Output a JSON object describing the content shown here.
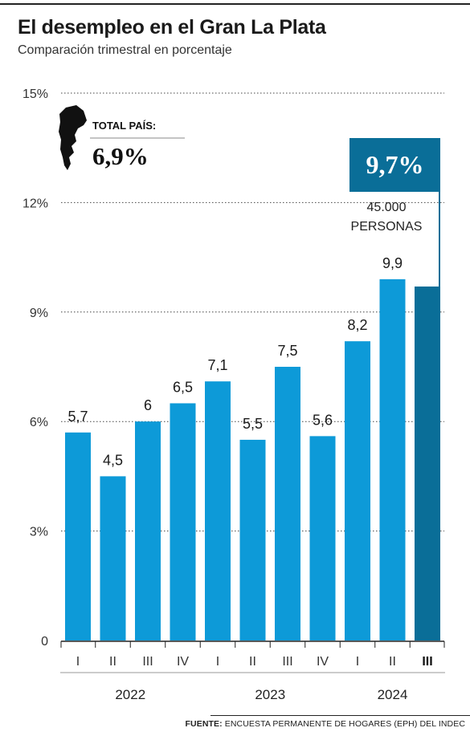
{
  "chart_data": {
    "type": "bar",
    "title": "El desempleo en el Gran La Plata",
    "subtitle": "Comparación trimestral en porcentaje",
    "ylim": [
      0,
      15
    ],
    "yticks": [
      "0",
      "3%",
      "6%",
      "9%",
      "12%",
      "15%"
    ],
    "ytick_values": [
      0,
      3,
      6,
      9,
      12,
      15
    ],
    "grid": true,
    "categories": [
      "I",
      "II",
      "III",
      "IV",
      "I",
      "II",
      "III",
      "IV",
      "I",
      "II",
      "III"
    ],
    "values": [
      5.7,
      4.5,
      6,
      6.5,
      7.1,
      5.5,
      7.5,
      5.6,
      8.2,
      9.9,
      9.7
    ],
    "data_labels": [
      "5,7",
      "4,5",
      "6",
      "6,5",
      "7,1",
      "5,5",
      "7,5",
      "5,6",
      "8,2",
      "9,9",
      ""
    ],
    "years": [
      {
        "label": "2022",
        "start": 0,
        "end": 3
      },
      {
        "label": "2023",
        "start": 4,
        "end": 7
      },
      {
        "label": "2024",
        "start": 8,
        "end": 10
      }
    ],
    "highlight_index": 10,
    "highlight_value_label": "9,7%",
    "highlight_note": [
      "45.000",
      "PERSONAS"
    ],
    "country_total_label": "TOTAL PAÍS:",
    "country_total_value": "6,9%",
    "colors": {
      "bar": "#0d9ad8",
      "highlight": "#0a6e98",
      "grid": "#444444"
    }
  },
  "source": {
    "prefix": "FUENTE:",
    "text": "ENCUESTA PERMANENTE DE HOGARES (EPH) DEL INDEC"
  }
}
